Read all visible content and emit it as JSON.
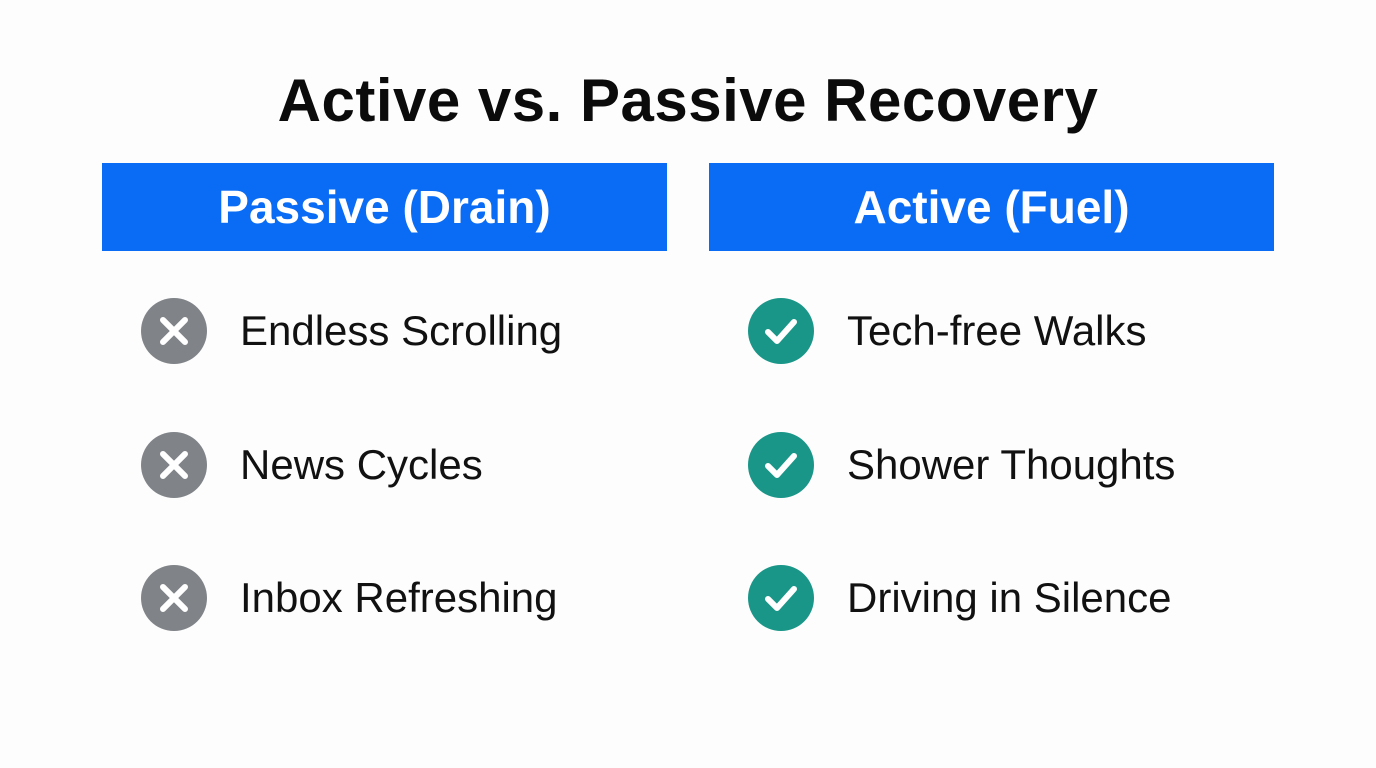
{
  "title": "Active vs. Passive Recovery",
  "colors": {
    "header_bg": "#0a6cf5",
    "passive_icon": "#808489",
    "active_icon": "#1a9688"
  },
  "passive": {
    "header": "Passive (Drain)",
    "icon": "x-circle-icon",
    "items": [
      "Endless Scrolling",
      "News Cycles",
      "Inbox Refreshing"
    ]
  },
  "active": {
    "header": "Active (Fuel)",
    "icon": "check-circle-icon",
    "items": [
      "Tech-free Walks",
      "Shower Thoughts",
      "Driving in Silence"
    ]
  }
}
